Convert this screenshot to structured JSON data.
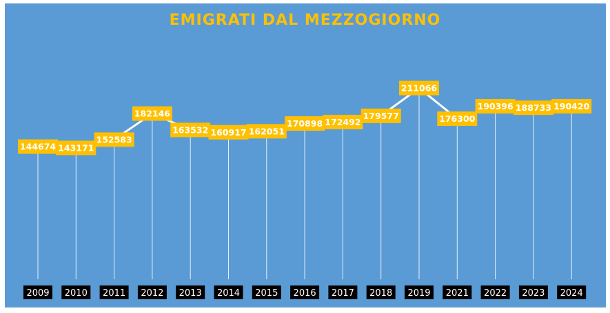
{
  "chart_data": {
    "type": "line",
    "title": "EMIGRATI DAL MEZZOGIORNO",
    "categories": [
      "2009",
      "2010",
      "2011",
      "2012",
      "2013",
      "2014",
      "2015",
      "2016",
      "2017",
      "2018",
      "2019",
      "2021",
      "2022",
      "2023",
      "2024"
    ],
    "values": [
      144674,
      143171,
      152583,
      182146,
      163532,
      160917,
      162051,
      170898,
      172492,
      179577,
      211066,
      176300,
      190396,
      188733,
      190420
    ],
    "data_labels": [
      "144674",
      "143171",
      "152583",
      "182146",
      "163532",
      "160917",
      "162051",
      "170898",
      "172492",
      "179577",
      "211066",
      "176300",
      "190396",
      "188733",
      "190420"
    ],
    "colors": {
      "background": "#5b9bd5",
      "line": "#ffffff",
      "label_box": "#ffc000",
      "axis_box": "#000000",
      "title": "#ffc000"
    },
    "ylim": [
      0,
      211066
    ],
    "grid": false,
    "legend": "none"
  }
}
